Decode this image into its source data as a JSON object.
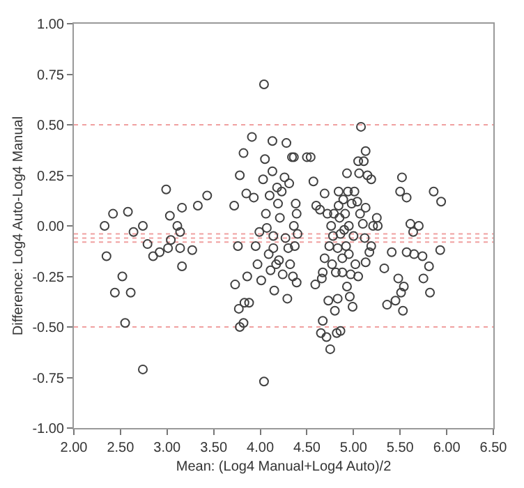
{
  "chart_data": {
    "type": "scatter",
    "xlabel": "Mean: (Log4 Manual+Log4 Auto)/2",
    "ylabel": "Difference: Log4 Auto-Log4 Manual",
    "marker": "circle",
    "grid": false,
    "legend": false,
    "xlim": [
      2.0,
      6.5
    ],
    "ylim": [
      -1.0,
      1.0
    ],
    "xticks": [
      {
        "value": 2.0,
        "label": "2.00"
      },
      {
        "value": 2.5,
        "label": "2.50"
      },
      {
        "value": 3.0,
        "label": "3.00"
      },
      {
        "value": 3.5,
        "label": "3.50"
      },
      {
        "value": 4.0,
        "label": "4.00"
      },
      {
        "value": 4.5,
        "label": "4.50"
      },
      {
        "value": 5.0,
        "label": "5.00"
      },
      {
        "value": 5.5,
        "label": "5.50"
      },
      {
        "value": 6.0,
        "label": "6.00"
      },
      {
        "value": 6.5,
        "label": "6.50"
      }
    ],
    "yticks": [
      {
        "value": -1.0,
        "label": "-1.00"
      },
      {
        "value": -0.75,
        "label": "-0.75"
      },
      {
        "value": -0.5,
        "label": "-0.50"
      },
      {
        "value": -0.25,
        "label": "-0.25"
      },
      {
        "value": 0,
        "label": "0.00"
      },
      {
        "value": 0.25,
        "label": "0.25"
      },
      {
        "value": 0.5,
        "label": "0.50"
      },
      {
        "value": 0.75,
        "label": "0.75"
      },
      {
        "value": 1.0,
        "label": "1.00"
      }
    ],
    "ref_lines": [
      {
        "axis": "y",
        "value": 0.5,
        "color": "#f0a0a0",
        "line_style": "dotted"
      },
      {
        "axis": "y",
        "value": -0.04,
        "color": "#f0a0a0",
        "line_style": "dotted"
      },
      {
        "axis": "y",
        "value": -0.06,
        "color": "#f0a0a0",
        "line_style": "dotted"
      },
      {
        "axis": "y",
        "value": -0.08,
        "color": "#f0a0a0",
        "line_style": "dotted"
      },
      {
        "axis": "y",
        "value": -0.5,
        "color": "#f0a0a0",
        "line_style": "dotted"
      }
    ],
    "series": [
      {
        "color": "#404040",
        "x": [
          2.33,
          2.35,
          2.42,
          2.44,
          2.52,
          2.55,
          2.58,
          2.61,
          2.64,
          2.74,
          2.74,
          2.79,
          2.85,
          2.92,
          2.99,
          3.01,
          3.03,
          3.04,
          3.11,
          3.14,
          3.14,
          3.16,
          3.16,
          3.27,
          3.33,
          3.43,
          3.72,
          3.73,
          3.78,
          3.76,
          3.82,
          3.77,
          3.78,
          3.82,
          3.83,
          3.85,
          3.86,
          3.88,
          3.91,
          3.93,
          3.95,
          3.97,
          3.99,
          4.01,
          4.04,
          4.05,
          4.03,
          4.06,
          4.07,
          4.09,
          4.04,
          4.1,
          4.11,
          4.13,
          4.13,
          4.14,
          4.14,
          4.15,
          4.17,
          4.18,
          4.19,
          4.2,
          4.21,
          4.23,
          4.24,
          4.26,
          4.27,
          4.28,
          4.29,
          4.3,
          4.31,
          4.32,
          4.34,
          4.35,
          4.36,
          4.37,
          4.38,
          4.39,
          4.39,
          4.4,
          4.36,
          4.5,
          4.54,
          4.57,
          4.59,
          4.6,
          4.64,
          4.66,
          4.67,
          4.65,
          4.67,
          4.69,
          4.69,
          4.71,
          4.72,
          4.73,
          4.74,
          4.75,
          4.76,
          4.77,
          4.78,
          4.79,
          4.8,
          4.81,
          4.82,
          4.83,
          4.83,
          4.84,
          4.84,
          4.85,
          4.86,
          4.86,
          4.88,
          4.88,
          4.89,
          4.9,
          4.91,
          4.92,
          4.93,
          4.93,
          4.94,
          4.95,
          4.95,
          4.96,
          4.97,
          4.98,
          4.99,
          5.0,
          5.01,
          5.02,
          5.04,
          5.05,
          5.05,
          5.06,
          5.07,
          5.08,
          5.1,
          5.11,
          5.12,
          5.13,
          5.13,
          5.13,
          5.15,
          5.17,
          5.19,
          5.19,
          5.21,
          5.25,
          5.26,
          5.33,
          5.36,
          5.41,
          5.45,
          5.48,
          5.5,
          5.51,
          5.52,
          5.53,
          5.54,
          5.57,
          5.57,
          5.61,
          5.64,
          5.65,
          5.7,
          5.74,
          5.75,
          5.81,
          5.82,
          5.86,
          5.93,
          5.94
        ],
        "values": [
          0.0,
          -0.15,
          0.06,
          -0.33,
          -0.25,
          -0.48,
          0.07,
          -0.33,
          -0.03,
          0.0,
          -0.71,
          -0.09,
          -0.15,
          -0.13,
          0.18,
          -0.11,
          0.05,
          -0.07,
          0.0,
          -0.03,
          -0.11,
          -0.2,
          0.09,
          -0.12,
          0.1,
          0.15,
          0.1,
          -0.29,
          0.25,
          -0.1,
          0.36,
          -0.41,
          -0.5,
          -0.48,
          -0.38,
          0.16,
          -0.25,
          -0.38,
          0.44,
          0.14,
          -0.1,
          -0.19,
          -0.03,
          -0.27,
          0.7,
          0.33,
          0.23,
          0.06,
          -0.01,
          -0.14,
          -0.77,
          0.15,
          -0.22,
          0.42,
          0.27,
          -0.05,
          -0.11,
          -0.32,
          -0.19,
          0.19,
          0.11,
          -0.17,
          0.04,
          0.17,
          -0.24,
          0.24,
          -0.06,
          0.41,
          -0.36,
          -0.11,
          0.21,
          -0.19,
          0.34,
          -0.25,
          0.0,
          -0.1,
          0.11,
          0.06,
          -0.28,
          -0.04,
          0.34,
          0.34,
          0.34,
          0.22,
          -0.29,
          0.1,
          0.08,
          -0.26,
          -0.23,
          -0.53,
          -0.47,
          0.16,
          -0.16,
          -0.55,
          0.06,
          -0.37,
          -0.1,
          -0.61,
          0.0,
          -0.19,
          -0.05,
          0.06,
          -0.42,
          -0.23,
          -0.53,
          -0.36,
          -0.11,
          0.17,
          0.1,
          0.04,
          -0.04,
          -0.52,
          -0.16,
          -0.23,
          0.13,
          -0.02,
          0.06,
          -0.1,
          -0.3,
          0.26,
          0.17,
          -0.14,
          0.0,
          -0.35,
          -0.24,
          0.11,
          -0.4,
          -0.05,
          0.17,
          -0.19,
          0.12,
          0.32,
          -0.25,
          0.26,
          0.06,
          0.49,
          0.01,
          0.32,
          -0.06,
          0.37,
          0.09,
          -0.18,
          0.25,
          -0.13,
          0.23,
          -0.1,
          0.0,
          0.04,
          0.0,
          -0.21,
          -0.39,
          -0.13,
          -0.37,
          -0.26,
          0.17,
          -0.33,
          0.24,
          -0.42,
          -0.3,
          0.14,
          -0.13,
          0.01,
          -0.03,
          -0.14,
          0.0,
          -0.15,
          -0.26,
          -0.2,
          -0.33,
          0.17,
          -0.12,
          0.12
        ]
      }
    ]
  }
}
